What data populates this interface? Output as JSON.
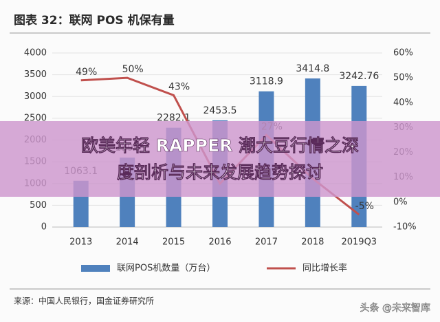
{
  "chart_data": {
    "type": "bar-line",
    "title": "图表 32：联网 POS 机保有量",
    "categories": [
      "2013",
      "2014",
      "2015",
      "2016",
      "2017",
      "2018",
      "2019Q3"
    ],
    "series": [
      {
        "name": "联网POS机数量（万台）",
        "type": "bar",
        "color": "#4f81bd",
        "values": [
          1063.1,
          1596,
          2282.1,
          2453.5,
          3118.9,
          3414.8,
          3242.76
        ]
      },
      {
        "name": "同比增长率",
        "type": "line",
        "axis": "y2",
        "color": "#c0504d",
        "values": [
          49,
          50,
          43,
          7.5,
          27,
          9.5,
          -5
        ],
        "value_labels": [
          "49%",
          "50%",
          "43%",
          null,
          "27%",
          null,
          "-5%"
        ]
      }
    ],
    "ylim": [
      0,
      4000
    ],
    "yticks": [
      0,
      500,
      1000,
      1500,
      2000,
      2500,
      3000,
      3500,
      4000
    ],
    "y2lim": [
      -10,
      60
    ],
    "y2ticks": [
      {
        "value": -10,
        "label": "-10%"
      },
      {
        "value": 0,
        "label": "0%"
      },
      {
        "value": 10,
        "label": "10%"
      },
      {
        "value": 20,
        "label": "20%"
      },
      {
        "value": 30,
        "label": "30%"
      },
      {
        "value": 40,
        "label": "40%"
      },
      {
        "value": 50,
        "label": "50%"
      },
      {
        "value": 60,
        "label": "60%"
      }
    ],
    "grid": true,
    "source": "来源：中国人民银行，国金证券研究所",
    "watermark": "头条 @未来智库",
    "banner": [
      "欧美年轻 RAPPER 潮大豆行情之深",
      "度剖析与未来发展趋势探讨"
    ]
  }
}
